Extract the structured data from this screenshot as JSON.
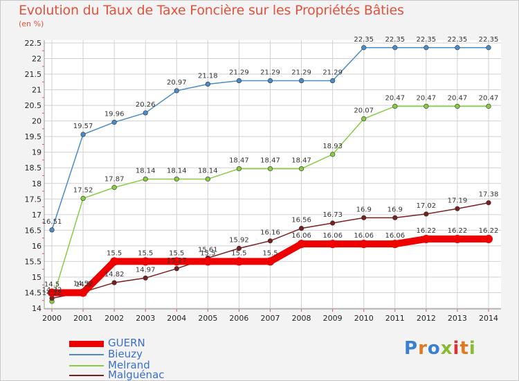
{
  "header": {
    "title": "Evolution du Taux de Taxe Foncière sur les Propriétés Bâties",
    "unit": "(en %)"
  },
  "colors": {
    "background": "#f3f3f3",
    "grid": "#d0d0d0",
    "axis_tick": "#e05050",
    "title": "#e4513c",
    "legend_text": "#3a6fd0"
  },
  "chart_data": {
    "type": "line",
    "title": "Evolution du Taux de Taxe Foncière sur les Propriétés Bâties",
    "ylabel": "(en %)",
    "xlabel": "",
    "x": [
      "2000",
      "2001",
      "2002",
      "2003",
      "2004",
      "2005",
      "2006",
      "2007",
      "2008",
      "2009",
      "2010",
      "2011",
      "2012",
      "2013",
      "2014"
    ],
    "ylim": [
      14,
      22.5
    ],
    "yticks": [
      "14",
      "14.5",
      "15",
      "15.5",
      "16",
      "16.5",
      "17",
      "17.5",
      "18",
      "18.5",
      "19",
      "19.5",
      "20",
      "20.5",
      "21",
      "21.5",
      "22",
      "22.5"
    ],
    "grid": true,
    "legend_position": "bottom-left",
    "series": [
      {
        "name": "GUERN",
        "color": "#ee0000",
        "values": [
          14.5,
          14.5,
          15.5,
          15.5,
          15.5,
          15.5,
          15.5,
          15.5,
          16.06,
          16.06,
          16.06,
          16.06,
          16.22,
          16.22,
          16.22
        ],
        "labels": [
          "14.5",
          "14.5",
          "15.5",
          "15.5",
          "15.5",
          "15.5",
          "15.5",
          "15.5",
          "16.06",
          "16.06",
          "16.06",
          "16.06",
          "16.22",
          "16.22",
          "16.22"
        ]
      },
      {
        "name": "Bieuzy",
        "color": "#4a8cc8",
        "values": [
          16.51,
          19.57,
          19.96,
          20.26,
          20.97,
          21.18,
          21.29,
          21.29,
          21.29,
          21.29,
          22.35,
          22.35,
          22.35,
          22.35,
          22.35
        ],
        "labels": [
          "16.51",
          "19.57",
          "19.96",
          "20.26",
          "20.97",
          "21.18",
          "21.29",
          "21.29",
          "21.29",
          "21.29",
          "22.35",
          "22.35",
          "22.35",
          "22.35",
          "22.35"
        ]
      },
      {
        "name": "Melrand",
        "color": "#88cc44",
        "values": [
          14.22,
          17.52,
          17.87,
          18.14,
          18.14,
          18.14,
          18.47,
          18.47,
          18.47,
          18.93,
          20.07,
          20.47,
          20.47,
          20.47,
          20.47
        ],
        "labels": [
          "14.22",
          "17.52",
          "17.87",
          "18.14",
          "18.14",
          "18.14",
          "18.47",
          "18.47",
          "18.47",
          "18.93",
          "20.07",
          "20.47",
          "20.47",
          "20.47",
          "20.47"
        ]
      },
      {
        "name": "Malguénac",
        "color": "#7a1f1f",
        "values": [
          14.32,
          14.52,
          14.82,
          14.97,
          15.27,
          15.61,
          15.92,
          16.16,
          16.56,
          16.73,
          16.9,
          16.9,
          17.02,
          17.19,
          17.38
        ],
        "labels": [
          "14.32",
          "14.52",
          "14.82",
          "14.97",
          "15.27",
          "15.61",
          "15.92",
          "16.16",
          "16.56",
          "16.73",
          "16.9",
          "16.9",
          "17.02",
          "17.19",
          "17.38"
        ]
      }
    ]
  },
  "logo": {
    "text": "Proxiti",
    "letter_colors": [
      "#3a7fd0",
      "#e07a20",
      "#3a7fd0",
      "#88bb33",
      "#e03030",
      "#e07a20",
      "#88bb33"
    ]
  }
}
